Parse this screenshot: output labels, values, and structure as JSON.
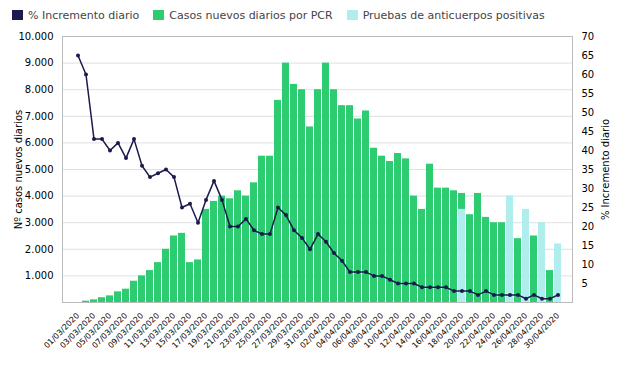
{
  "chart_data": {
    "type": "bar",
    "categories": [
      "01/03/2020",
      null,
      "03/03/2020",
      null,
      "05/03/2020",
      null,
      "07/03/2020",
      null,
      "09/03/2020",
      null,
      "11/03/2020",
      null,
      "13/03/2020",
      null,
      "15/03/2020",
      null,
      "17/03/2020",
      null,
      "19/03/2020",
      null,
      "21/03/2020",
      null,
      "23/03/2020",
      null,
      "25/03/2020",
      null,
      "27/03/2020",
      null,
      "29/03/2020",
      null,
      "31/03/2020",
      null,
      "02/04/2020",
      null,
      "04/04/2020",
      null,
      "06/04/2020",
      null,
      "08/04/2020",
      null,
      "10/04/2020",
      null,
      "12/04/2020",
      null,
      "14/04/2020",
      null,
      "16/04/2020",
      null,
      "18/04/2020",
      null,
      "20/04/2020",
      null,
      "22/04/2020",
      null,
      "24/04/2020",
      null,
      "26/04/2020",
      null,
      "28/04/2020",
      null,
      "30/04/2020"
    ],
    "series": [
      {
        "name": "% Incremento diario",
        "color": "#1a1a4e",
        "type": "line",
        "axis": "y2",
        "marker": "circle",
        "values": [
          65,
          60,
          43,
          43,
          40,
          42,
          38,
          43,
          36,
          33,
          34,
          35,
          33,
          25,
          26,
          21,
          27,
          32,
          27,
          20,
          20,
          22,
          19,
          18,
          18,
          25,
          23,
          19,
          17,
          14,
          18,
          16,
          13,
          11,
          8,
          8,
          8,
          7,
          7,
          6,
          5,
          5,
          5,
          4,
          4,
          4,
          4,
          3,
          3,
          3,
          2,
          3,
          2,
          2,
          2,
          2,
          1,
          2,
          1,
          1,
          2
        ]
      },
      {
        "name": "Casos nuevos diarios por PCR",
        "color": "#2ecc71",
        "type": "bar",
        "values": [
          0,
          50,
          100,
          180,
          250,
          400,
          500,
          800,
          1000,
          1200,
          1500,
          2000,
          2500,
          2600,
          1500,
          1600,
          3500,
          3800,
          4000,
          3900,
          4200,
          4000,
          4500,
          5500,
          5500,
          7600,
          9000,
          8200,
          8000,
          6600,
          8000,
          9000,
          8000,
          7400,
          7400,
          6900,
          7200,
          5800,
          5500,
          5300,
          5600,
          5400,
          4000,
          3500,
          5200,
          4300,
          4300,
          4200,
          4100,
          3300,
          4100,
          3200,
          3000,
          3000,
          2500,
          2400,
          1700,
          2500,
          1700,
          1200,
          1200
        ]
      },
      {
        "name": "Pruebas de anticuerpos positivas",
        "color": "#b0eeee",
        "type": "bar",
        "values": [
          0,
          0,
          0,
          0,
          0,
          0,
          0,
          0,
          0,
          0,
          0,
          0,
          0,
          0,
          0,
          0,
          0,
          0,
          0,
          0,
          0,
          0,
          0,
          0,
          0,
          0,
          0,
          0,
          0,
          0,
          0,
          0,
          0,
          0,
          0,
          0,
          0,
          0,
          0,
          0,
          0,
          0,
          0,
          0,
          0,
          0,
          0,
          0,
          3500,
          0,
          0,
          0,
          0,
          0,
          4000,
          0,
          3500,
          0,
          3000,
          0,
          2200
        ]
      }
    ],
    "stacked": false,
    "ylabel": "Nº casos nuevos diarios",
    "y2label": "% Incremento diario",
    "ylim": [
      0,
      10000
    ],
    "yticks": [
      {
        "value": 1000,
        "label": "1.000"
      },
      {
        "value": 2000,
        "label": "2.000"
      },
      {
        "value": 3000,
        "label": "3.000"
      },
      {
        "value": 4000,
        "label": "4.000"
      },
      {
        "value": 5000,
        "label": "5.000"
      },
      {
        "value": 6000,
        "label": "6.000"
      },
      {
        "value": 7000,
        "label": "7.000"
      },
      {
        "value": 8000,
        "label": "8.000"
      },
      {
        "value": 9000,
        "label": "9.000"
      },
      {
        "value": 10000,
        "label": "10.000"
      }
    ],
    "y2lim": [
      0,
      70
    ],
    "y2ticks": [
      5,
      10,
      15,
      20,
      25,
      30,
      35,
      40,
      45,
      50,
      55,
      60,
      65,
      70
    ],
    "grid": true,
    "legend": "top"
  }
}
